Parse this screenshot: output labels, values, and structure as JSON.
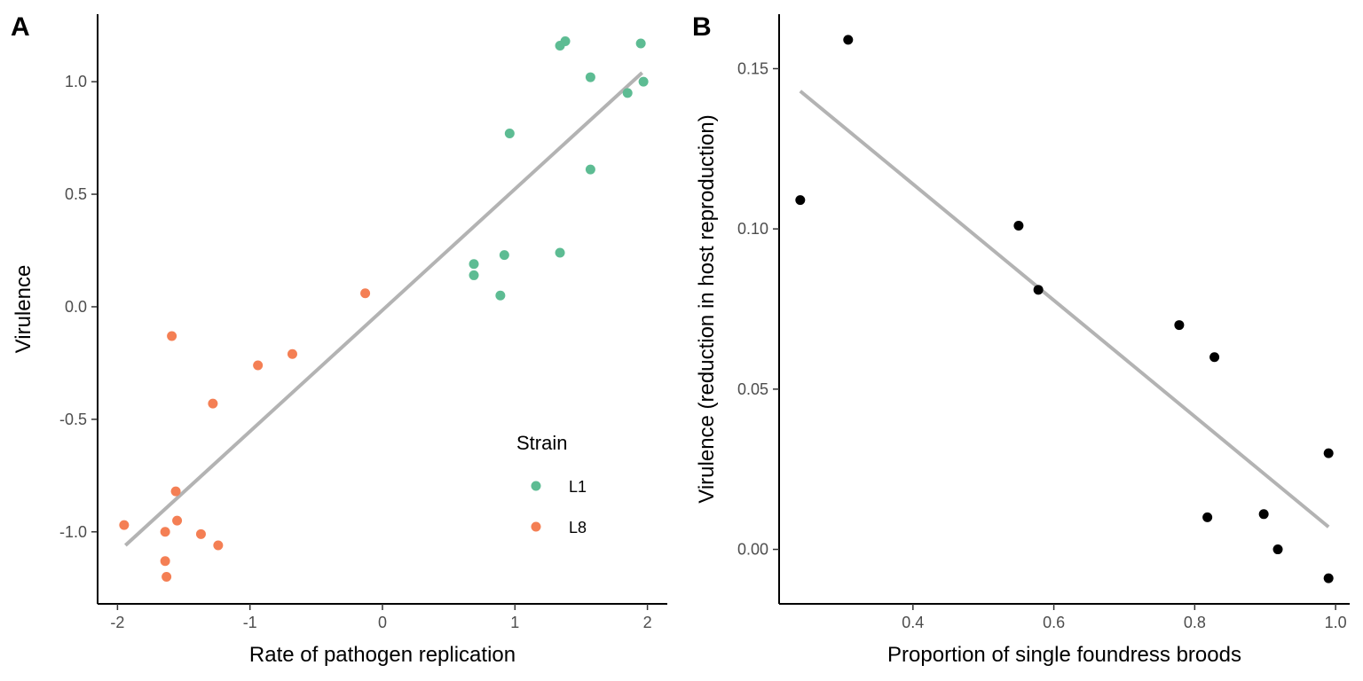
{
  "chart_data": [
    {
      "type": "scatter",
      "panel_label": "A",
      "xlabel": "Rate of pathogen replication",
      "ylabel": "Virulence",
      "xlim": [
        -2.15,
        2.15
      ],
      "ylim": [
        -1.32,
        1.3
      ],
      "xticks": [
        -2,
        -1,
        0,
        1,
        2
      ],
      "xtick_labels": [
        "-2",
        "-1",
        "0",
        "1",
        "2"
      ],
      "yticks": [
        -1.0,
        -0.5,
        0.0,
        0.5,
        1.0
      ],
      "ytick_labels": [
        "-1.0",
        "-0.5",
        "0.0",
        "0.5",
        "1.0"
      ],
      "grid": false,
      "legend": {
        "title": "Strain",
        "position": "bottom-right"
      },
      "series": [
        {
          "name": "L1",
          "color": "#5dbc93",
          "points": [
            [
              1.34,
              1.16
            ],
            [
              1.38,
              1.18
            ],
            [
              1.95,
              1.17
            ],
            [
              1.57,
              1.02
            ],
            [
              1.85,
              0.95
            ],
            [
              1.97,
              1.0
            ],
            [
              0.96,
              0.77
            ],
            [
              1.57,
              0.61
            ],
            [
              0.69,
              0.19
            ],
            [
              0.69,
              0.14
            ],
            [
              0.92,
              0.23
            ],
            [
              1.34,
              0.24
            ],
            [
              0.89,
              0.05
            ]
          ]
        },
        {
          "name": "L8",
          "color": "#f47f54",
          "points": [
            [
              -0.13,
              0.06
            ],
            [
              -1.59,
              -0.13
            ],
            [
              -0.94,
              -0.26
            ],
            [
              -0.68,
              -0.21
            ],
            [
              -1.28,
              -0.43
            ],
            [
              -1.56,
              -0.82
            ],
            [
              -1.95,
              -0.97
            ],
            [
              -1.64,
              -1.0
            ],
            [
              -1.55,
              -0.95
            ],
            [
              -1.37,
              -1.01
            ],
            [
              -1.24,
              -1.06
            ],
            [
              -1.64,
              -1.13
            ],
            [
              -1.63,
              -1.2
            ]
          ]
        }
      ],
      "fit_line": {
        "color": "#b3b3b3",
        "x": [
          -1.94,
          1.96
        ],
        "y": [
          -1.06,
          1.04
        ]
      }
    },
    {
      "type": "scatter",
      "panel_label": "B",
      "xlabel": "Proportion of single foundress broods",
      "ylabel": "Virulence (reduction in host reproduction)",
      "xlim": [
        0.21,
        1.02
      ],
      "ylim": [
        -0.017,
        0.167
      ],
      "xticks": [
        0.4,
        0.6,
        0.8,
        1.0
      ],
      "xtick_labels": [
        "0.4",
        "0.6",
        "0.8",
        "1.0"
      ],
      "yticks": [
        0.0,
        0.05,
        0.1,
        0.15
      ],
      "ytick_labels": [
        "0.00",
        "0.05",
        "0.10",
        "0.15"
      ],
      "grid": false,
      "series": [
        {
          "color": "#000000",
          "points": [
            [
              0.24,
              0.109
            ],
            [
              0.308,
              0.159
            ],
            [
              0.55,
              0.101
            ],
            [
              0.578,
              0.081
            ],
            [
              0.778,
              0.07
            ],
            [
              0.828,
              0.06
            ],
            [
              0.99,
              0.03
            ],
            [
              0.818,
              0.01
            ],
            [
              0.898,
              0.011
            ],
            [
              0.918,
              0.0
            ],
            [
              0.99,
              -0.009
            ]
          ]
        }
      ],
      "fit_line": {
        "color": "#b3b3b3",
        "x": [
          0.24,
          0.99
        ],
        "y": [
          0.143,
          0.007
        ]
      }
    }
  ]
}
